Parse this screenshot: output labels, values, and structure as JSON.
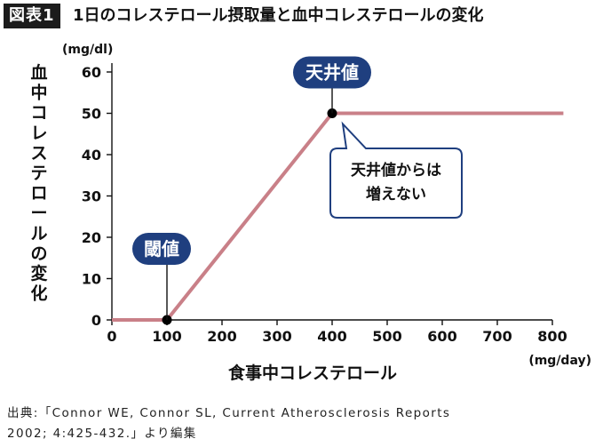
{
  "figure": {
    "badge": "図表1",
    "title": "1日のコレステロール摂取量と血中コレステロールの変化"
  },
  "chart_data": {
    "type": "line",
    "title": "1日のコレステロール摂取量と血中コレステロールの変化",
    "xlabel": "食事中コレステロール",
    "ylabel": "血中コレステロールの変化",
    "x_unit": "(mg/day)",
    "y_unit": "(mg/dl)",
    "xlim": [
      0,
      800
    ],
    "ylim": [
      0,
      60
    ],
    "x_ticks": [
      0,
      100,
      200,
      300,
      400,
      500,
      600,
      700,
      800
    ],
    "y_ticks": [
      0,
      10,
      20,
      30,
      40,
      50,
      60
    ],
    "grid": false,
    "series": [
      {
        "color": "#c98088",
        "x": [
          0,
          100,
          400,
          820
        ],
        "y": [
          0,
          0,
          50,
          50
        ]
      }
    ],
    "key_points": [
      {
        "label": "閾値",
        "x": 100,
        "y": 0
      },
      {
        "label": "天井値",
        "x": 400,
        "y": 50
      }
    ],
    "callout": {
      "lines": [
        "天井値からは",
        "増えない"
      ],
      "x": 400,
      "y": 50
    },
    "colors": {
      "line": "#c98088",
      "label_fill": "#1f3f7f",
      "callout_border": "#1f3f7f",
      "axis": "#111111"
    }
  },
  "source": {
    "line1": "出典:「Connor WE, Connor SL, Current Atherosclerosis Reports",
    "line2": "2002; 4:425-432.」より編集"
  }
}
